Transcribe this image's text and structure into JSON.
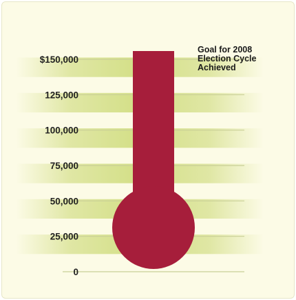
{
  "chart_data": {
    "type": "thermometer",
    "title": "",
    "xlabel": "",
    "ylabel": "",
    "ylim": [
      0,
      150000
    ],
    "y_ticks": [
      {
        "value": 0,
        "label": "0"
      },
      {
        "value": 25000,
        "label": "25,000"
      },
      {
        "value": 50000,
        "label": "50,000"
      },
      {
        "value": 75000,
        "label": "75,000"
      },
      {
        "value": 100000,
        "label": "100,000"
      },
      {
        "value": 125000,
        "label": "125,000"
      },
      {
        "value": 150000,
        "label": "$150,000"
      }
    ],
    "value": 150000,
    "goal": 150000,
    "annotation": [
      "Goal for 2008",
      "Election Cycle",
      "Achieved"
    ],
    "colors": {
      "mercury": "#a61e3b",
      "background": "#fcfbe6",
      "band": "#d6e08e",
      "gridline": "#c9cf96"
    }
  }
}
